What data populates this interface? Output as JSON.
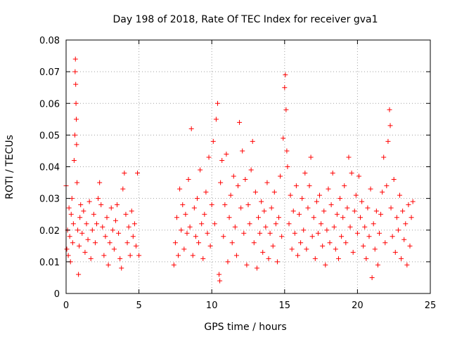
{
  "chart_data": {
    "type": "scatter",
    "title": "Day 198 of 2018, Rate Of TEC Index for receiver gva1",
    "xlabel": "GPS time / hours",
    "ylabel": "ROTI / TECUs",
    "xlim": [
      0,
      25
    ],
    "ylim": [
      0,
      0.08
    ],
    "xticks": [
      0,
      5,
      10,
      15,
      20,
      25
    ],
    "yticks": [
      0,
      0.01,
      0.02,
      0.03,
      0.04,
      0.05,
      0.06,
      0.07,
      0.08
    ],
    "xtick_labels": [
      "0",
      "5",
      "10",
      "15",
      "20",
      "25"
    ],
    "ytick_labels": [
      "0",
      "0.01",
      "0.02",
      "0.03",
      "0.04",
      "0.05",
      "0.06",
      "0.07",
      "0.08"
    ],
    "grid": true,
    "marker": "+",
    "marker_color": "#ff0000",
    "series": [
      {
        "name": "gva1 ROTI",
        "points": [
          [
            0.0,
            0.034
          ],
          [
            0.05,
            0.014
          ],
          [
            0.1,
            0.02
          ],
          [
            0.15,
            0.012
          ],
          [
            0.2,
            0.027
          ],
          [
            0.25,
            0.018
          ],
          [
            0.3,
            0.01
          ],
          [
            0.35,
            0.025
          ],
          [
            0.4,
            0.03
          ],
          [
            0.45,
            0.016
          ],
          [
            0.5,
            0.022
          ],
          [
            0.55,
            0.042
          ],
          [
            0.6,
            0.05
          ],
          [
            0.62,
            0.07
          ],
          [
            0.64,
            0.074
          ],
          [
            0.66,
            0.066
          ],
          [
            0.68,
            0.06
          ],
          [
            0.7,
            0.055
          ],
          [
            0.72,
            0.047
          ],
          [
            0.75,
            0.035
          ],
          [
            0.8,
            0.02
          ],
          [
            0.85,
            0.006
          ],
          [
            0.9,
            0.015
          ],
          [
            0.95,
            0.024
          ],
          [
            1.0,
            0.028
          ],
          [
            1.1,
            0.019
          ],
          [
            1.2,
            0.026
          ],
          [
            1.3,
            0.013
          ],
          [
            1.4,
            0.022
          ],
          [
            1.5,
            0.017
          ],
          [
            1.6,
            0.029
          ],
          [
            1.7,
            0.011
          ],
          [
            1.8,
            0.02
          ],
          [
            1.9,
            0.025
          ],
          [
            2.0,
            0.016
          ],
          [
            2.1,
            0.022
          ],
          [
            2.2,
            0.03
          ],
          [
            2.3,
            0.035
          ],
          [
            2.4,
            0.028
          ],
          [
            2.5,
            0.021
          ],
          [
            2.6,
            0.012
          ],
          [
            2.7,
            0.018
          ],
          [
            2.8,
            0.024
          ],
          [
            2.9,
            0.009
          ],
          [
            3.0,
            0.016
          ],
          [
            3.1,
            0.027
          ],
          [
            3.2,
            0.02
          ],
          [
            3.3,
            0.014
          ],
          [
            3.4,
            0.023
          ],
          [
            3.5,
            0.028
          ],
          [
            3.6,
            0.019
          ],
          [
            3.7,
            0.011
          ],
          [
            3.8,
            0.008
          ],
          [
            3.9,
            0.033
          ],
          [
            4.0,
            0.038
          ],
          [
            4.1,
            0.025
          ],
          [
            4.2,
            0.016
          ],
          [
            4.3,
            0.021
          ],
          [
            4.4,
            0.012
          ],
          [
            4.5,
            0.026
          ],
          [
            4.6,
            0.018
          ],
          [
            4.7,
            0.022
          ],
          [
            4.8,
            0.015
          ],
          [
            4.9,
            0.038
          ],
          [
            5.0,
            0.012
          ],
          [
            7.4,
            0.009
          ],
          [
            7.5,
            0.016
          ],
          [
            7.6,
            0.024
          ],
          [
            7.7,
            0.012
          ],
          [
            7.8,
            0.033
          ],
          [
            7.9,
            0.02
          ],
          [
            8.0,
            0.028
          ],
          [
            8.1,
            0.014
          ],
          [
            8.2,
            0.025
          ],
          [
            8.3,
            0.019
          ],
          [
            8.4,
            0.036
          ],
          [
            8.5,
            0.021
          ],
          [
            8.6,
            0.052
          ],
          [
            8.7,
            0.012
          ],
          [
            8.8,
            0.027
          ],
          [
            8.9,
            0.018
          ],
          [
            9.0,
            0.03
          ],
          [
            9.1,
            0.016
          ],
          [
            9.2,
            0.039
          ],
          [
            9.3,
            0.022
          ],
          [
            9.4,
            0.011
          ],
          [
            9.5,
            0.025
          ],
          [
            9.6,
            0.032
          ],
          [
            9.7,
            0.019
          ],
          [
            9.8,
            0.043
          ],
          [
            9.9,
            0.015
          ],
          [
            10.0,
            0.028
          ],
          [
            10.1,
            0.048
          ],
          [
            10.2,
            0.022
          ],
          [
            10.3,
            0.055
          ],
          [
            10.4,
            0.06
          ],
          [
            10.5,
            0.006
          ],
          [
            10.55,
            0.004
          ],
          [
            10.6,
            0.035
          ],
          [
            10.7,
            0.042
          ],
          [
            10.8,
            0.018
          ],
          [
            10.9,
            0.028
          ],
          [
            11.0,
            0.044
          ],
          [
            11.1,
            0.01
          ],
          [
            11.2,
            0.024
          ],
          [
            11.3,
            0.031
          ],
          [
            11.4,
            0.016
          ],
          [
            11.5,
            0.037
          ],
          [
            11.6,
            0.021
          ],
          [
            11.7,
            0.012
          ],
          [
            11.8,
            0.034
          ],
          [
            11.9,
            0.054
          ],
          [
            12.0,
            0.027
          ],
          [
            12.1,
            0.045
          ],
          [
            12.2,
            0.019
          ],
          [
            12.3,
            0.036
          ],
          [
            12.4,
            0.009
          ],
          [
            12.5,
            0.028
          ],
          [
            12.6,
            0.022
          ],
          [
            12.7,
            0.039
          ],
          [
            12.8,
            0.048
          ],
          [
            12.9,
            0.016
          ],
          [
            13.0,
            0.032
          ],
          [
            13.1,
            0.008
          ],
          [
            13.2,
            0.024
          ],
          [
            13.3,
            0.019
          ],
          [
            13.4,
            0.029
          ],
          [
            13.5,
            0.013
          ],
          [
            13.6,
            0.026
          ],
          [
            13.7,
            0.021
          ],
          [
            13.8,
            0.035
          ],
          [
            13.9,
            0.011
          ],
          [
            14.0,
            0.019
          ],
          [
            14.1,
            0.027
          ],
          [
            14.2,
            0.015
          ],
          [
            14.3,
            0.032
          ],
          [
            14.4,
            0.022
          ],
          [
            14.5,
            0.01
          ],
          [
            14.6,
            0.024
          ],
          [
            14.7,
            0.037
          ],
          [
            14.8,
            0.018
          ],
          [
            14.9,
            0.049
          ],
          [
            15.0,
            0.065
          ],
          [
            15.05,
            0.069
          ],
          [
            15.1,
            0.058
          ],
          [
            15.15,
            0.045
          ],
          [
            15.2,
            0.04
          ],
          [
            15.3,
            0.022
          ],
          [
            15.4,
            0.031
          ],
          [
            15.5,
            0.014
          ],
          [
            15.6,
            0.026
          ],
          [
            15.7,
            0.019
          ],
          [
            15.8,
            0.034
          ],
          [
            15.9,
            0.012
          ],
          [
            16.0,
            0.025
          ],
          [
            16.1,
            0.016
          ],
          [
            16.2,
            0.03
          ],
          [
            16.3,
            0.02
          ],
          [
            16.4,
            0.038
          ],
          [
            16.5,
            0.014
          ],
          [
            16.6,
            0.027
          ],
          [
            16.7,
            0.034
          ],
          [
            16.8,
            0.043
          ],
          [
            16.9,
            0.018
          ],
          [
            17.0,
            0.024
          ],
          [
            17.1,
            0.011
          ],
          [
            17.2,
            0.029
          ],
          [
            17.3,
            0.019
          ],
          [
            17.4,
            0.031
          ],
          [
            17.5,
            0.022
          ],
          [
            17.6,
            0.015
          ],
          [
            17.7,
            0.026
          ],
          [
            17.8,
            0.009
          ],
          [
            17.9,
            0.02
          ],
          [
            18.0,
            0.033
          ],
          [
            18.1,
            0.016
          ],
          [
            18.2,
            0.028
          ],
          [
            18.3,
            0.038
          ],
          [
            18.4,
            0.021
          ],
          [
            18.5,
            0.014
          ],
          [
            18.6,
            0.025
          ],
          [
            18.7,
            0.011
          ],
          [
            18.8,
            0.03
          ],
          [
            18.9,
            0.018
          ],
          [
            19.0,
            0.024
          ],
          [
            19.1,
            0.034
          ],
          [
            19.2,
            0.016
          ],
          [
            19.3,
            0.027
          ],
          [
            19.4,
            0.043
          ],
          [
            19.5,
            0.021
          ],
          [
            19.6,
            0.038
          ],
          [
            19.7,
            0.013
          ],
          [
            19.8,
            0.026
          ],
          [
            19.9,
            0.031
          ],
          [
            20.0,
            0.019
          ],
          [
            20.1,
            0.037
          ],
          [
            20.2,
            0.024
          ],
          [
            20.3,
            0.029
          ],
          [
            20.4,
            0.015
          ],
          [
            20.5,
            0.021
          ],
          [
            20.6,
            0.011
          ],
          [
            20.7,
            0.027
          ],
          [
            20.8,
            0.018
          ],
          [
            20.9,
            0.033
          ],
          [
            21.0,
            0.005
          ],
          [
            21.1,
            0.022
          ],
          [
            21.2,
            0.014
          ],
          [
            21.3,
            0.026
          ],
          [
            21.4,
            0.009
          ],
          [
            21.5,
            0.019
          ],
          [
            21.6,
            0.025
          ],
          [
            21.7,
            0.032
          ],
          [
            21.8,
            0.043
          ],
          [
            21.9,
            0.016
          ],
          [
            22.0,
            0.034
          ],
          [
            22.1,
            0.048
          ],
          [
            22.2,
            0.058
          ],
          [
            22.25,
            0.053
          ],
          [
            22.3,
            0.027
          ],
          [
            22.4,
            0.018
          ],
          [
            22.5,
            0.036
          ],
          [
            22.6,
            0.013
          ],
          [
            22.7,
            0.024
          ],
          [
            22.8,
            0.02
          ],
          [
            22.9,
            0.031
          ],
          [
            23.0,
            0.011
          ],
          [
            23.1,
            0.026
          ],
          [
            23.2,
            0.017
          ],
          [
            23.3,
            0.022
          ],
          [
            23.4,
            0.009
          ],
          [
            23.5,
            0.028
          ],
          [
            23.6,
            0.015
          ],
          [
            23.7,
            0.024
          ],
          [
            23.8,
            0.029
          ]
        ]
      }
    ]
  }
}
